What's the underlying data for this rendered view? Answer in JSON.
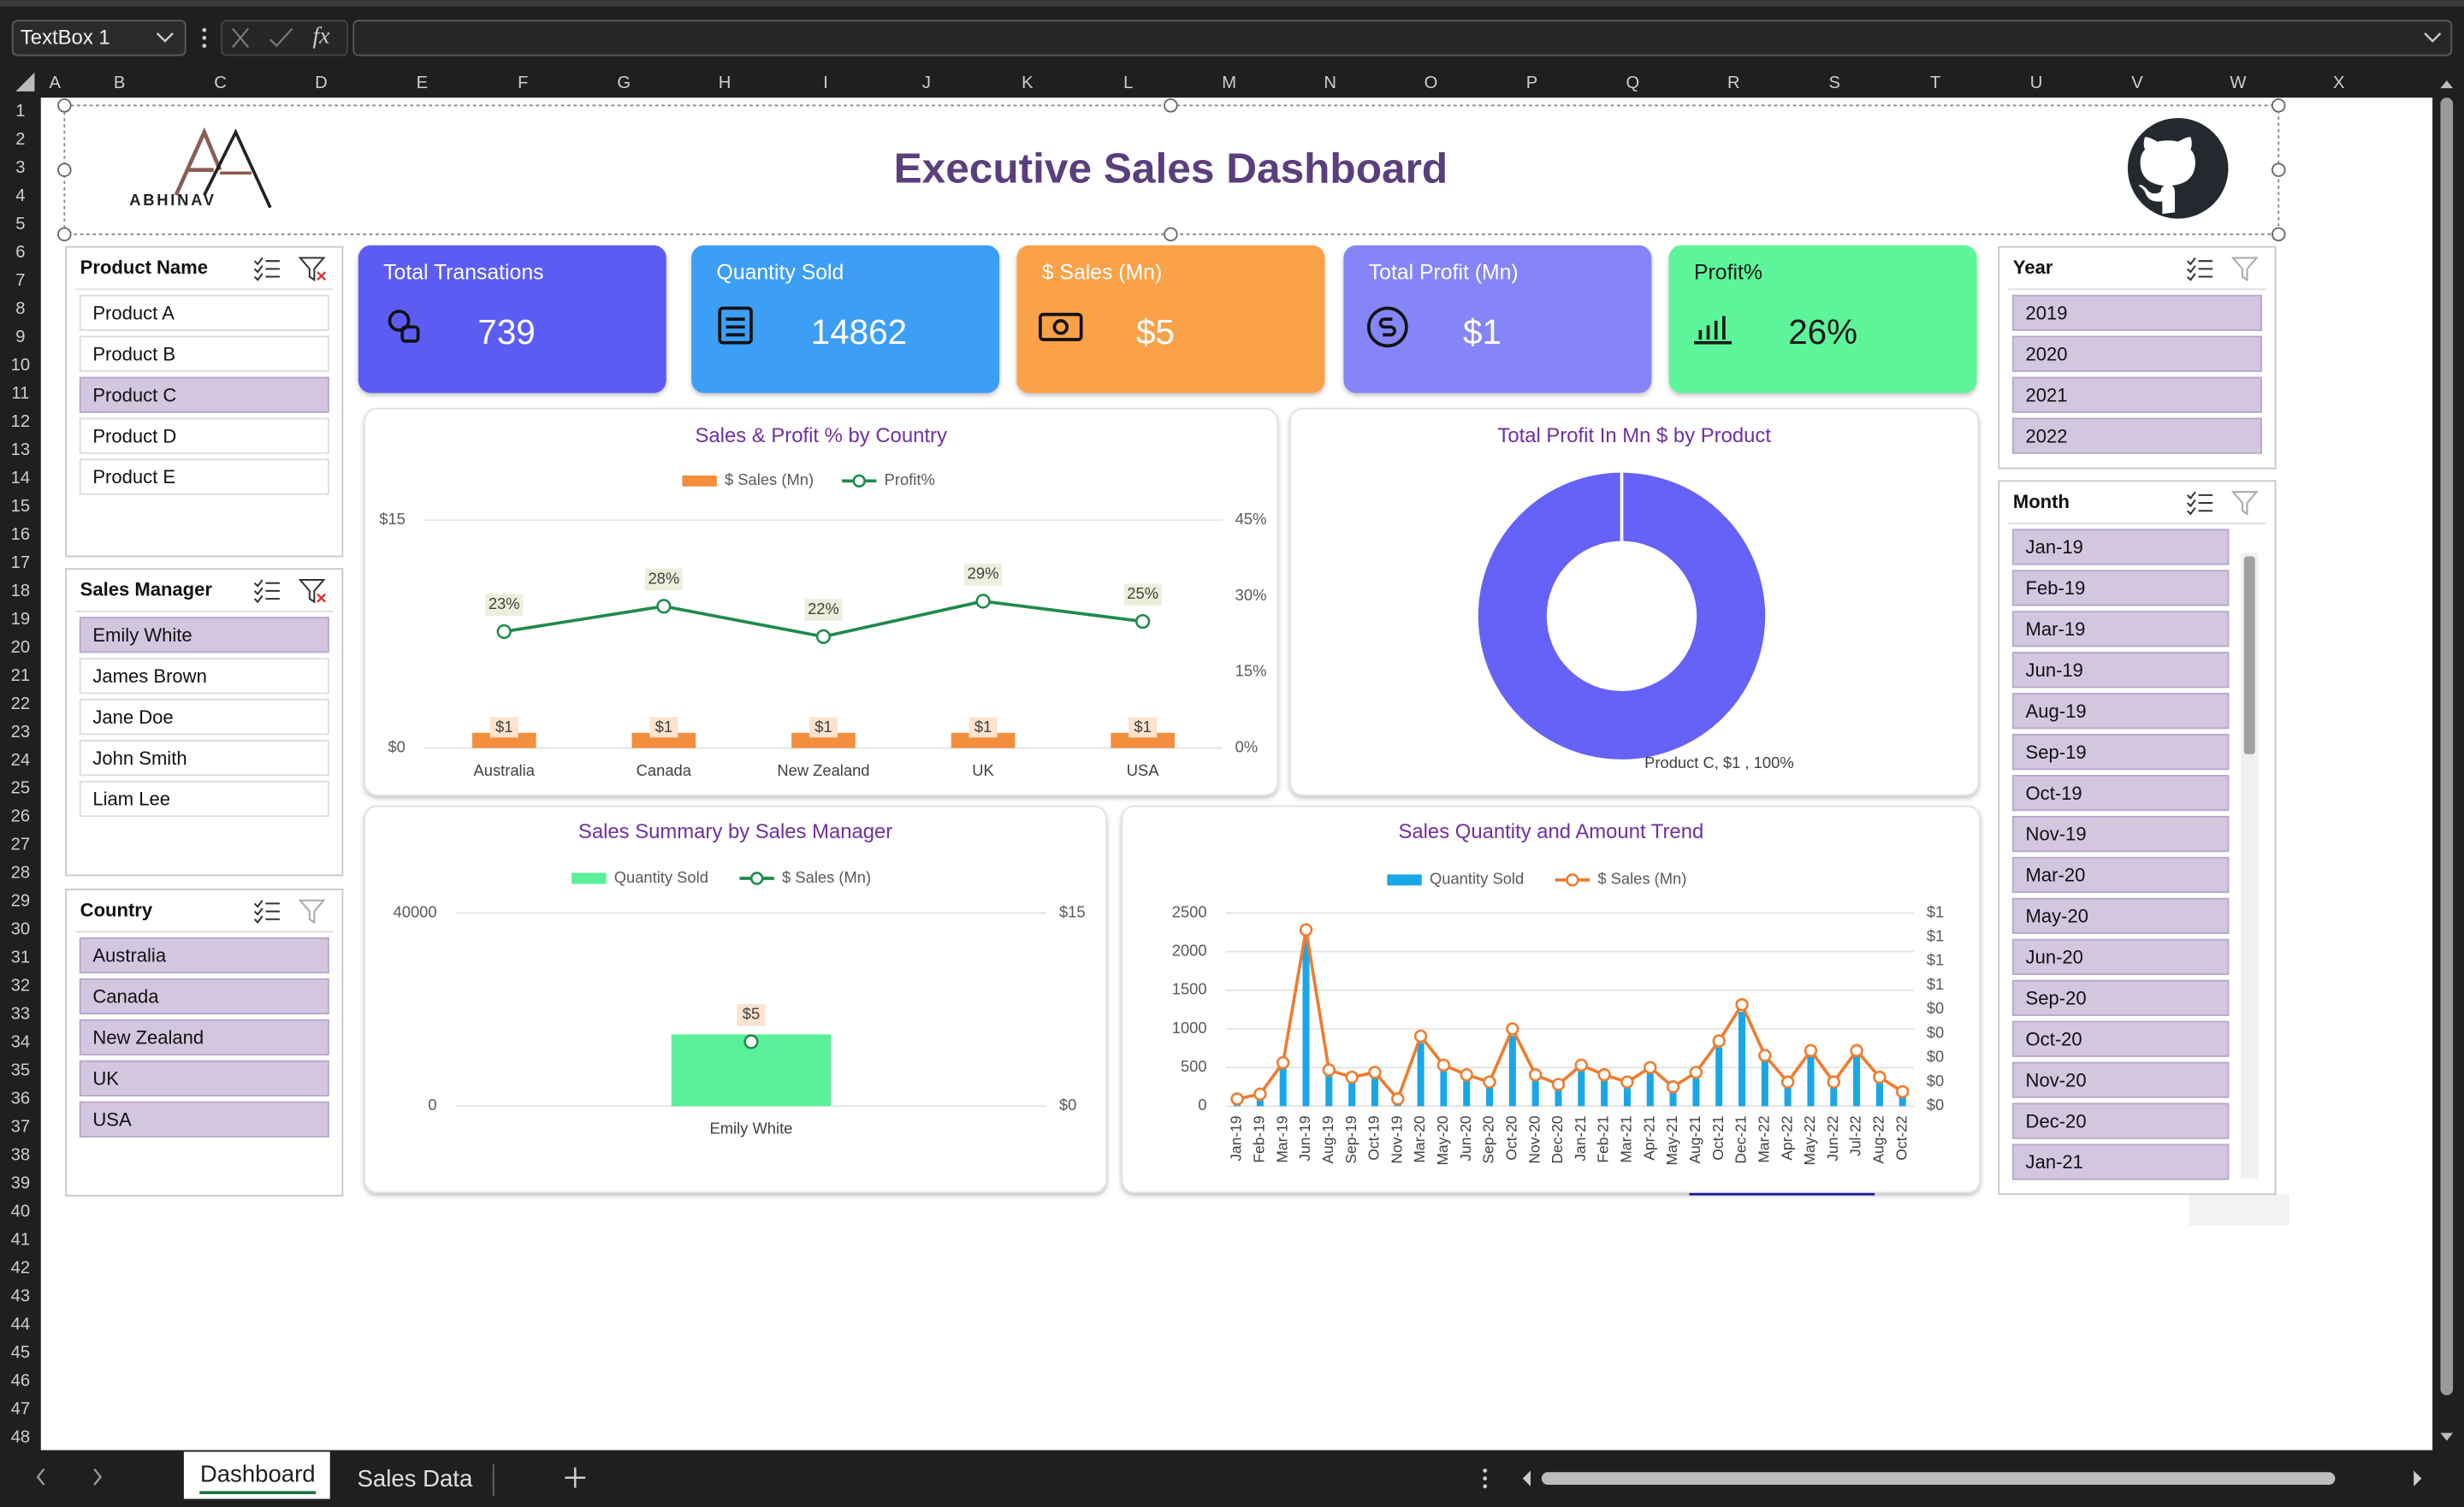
{
  "app": {
    "name_box": "TextBox 1",
    "formula_icon": "fx",
    "columns": [
      "A",
      "B",
      "C",
      "D",
      "E",
      "F",
      "G",
      "H",
      "I",
      "J",
      "K",
      "L",
      "M",
      "N",
      "O",
      "P",
      "Q",
      "R",
      "S",
      "T",
      "U",
      "V",
      "W",
      "X"
    ],
    "rows": [
      1,
      2,
      3,
      4,
      5,
      6,
      7,
      8,
      9,
      10,
      11,
      12,
      13,
      14,
      15,
      16,
      17,
      18,
      19,
      20,
      21,
      22,
      23,
      24,
      25,
      26,
      27,
      28,
      29,
      30,
      31,
      32,
      33,
      34,
      35,
      36,
      37,
      38,
      39,
      40,
      41,
      42,
      43,
      44,
      45,
      46,
      47,
      48
    ],
    "sheet_tabs": [
      "Dashboard",
      "Sales Data"
    ]
  },
  "dashboard": {
    "title": "Executive Sales Dashboard",
    "logo": "ABHINAV",
    "kpis": [
      {
        "label": "Total Transations",
        "value": "739",
        "color": "#5b5bf5"
      },
      {
        "label": "Quantity Sold",
        "value": "14862",
        "color": "#3d9ef5"
      },
      {
        "label": "$ Sales (Mn)",
        "value": "$5",
        "color": "#fba24a"
      },
      {
        "label": "Total Profit (Mn)",
        "value": "$1",
        "color": "#8585f8"
      },
      {
        "label": "Profit%",
        "value": "26%",
        "color": "#5cf59a"
      }
    ],
    "slicers": [
      {
        "title": "Product Name",
        "items": [
          "Product A",
          "Product B",
          "Product C",
          "Product D",
          "Product E"
        ],
        "selected": [
          false,
          false,
          true,
          false,
          false
        ]
      },
      {
        "title": "Sales Manager",
        "items": [
          "Emily White",
          "James Brown",
          "Jane Doe",
          "John Smith",
          "Liam Lee"
        ],
        "selected": [
          true,
          false,
          false,
          false,
          false
        ]
      },
      {
        "title": "Country",
        "items": [
          "Australia",
          "Canada",
          "New Zealand",
          "UK",
          "USA"
        ],
        "selected": [
          true,
          true,
          true,
          true,
          true
        ]
      },
      {
        "title": "Year",
        "items": [
          "2019",
          "2020",
          "2021",
          "2022"
        ],
        "selected": [
          true,
          true,
          true,
          true
        ]
      },
      {
        "title": "Month",
        "items": [
          "Jan-19",
          "Feb-19",
          "Mar-19",
          "Jun-19",
          "Aug-19",
          "Sep-19",
          "Oct-19",
          "Nov-19",
          "Mar-20",
          "May-20",
          "Jun-20",
          "Sep-20",
          "Oct-20",
          "Nov-20",
          "Dec-20",
          "Jan-21"
        ],
        "selected": [
          true,
          true,
          true,
          true,
          true,
          true,
          true,
          true,
          true,
          true,
          true,
          true,
          true,
          true,
          true,
          true
        ]
      }
    ]
  },
  "chart_data": [
    {
      "type": "combo",
      "title": "Sales & Profit % by Country",
      "categories": [
        "Australia",
        "Canada",
        "New Zealand",
        "UK",
        "USA"
      ],
      "series": [
        {
          "name": "$ Sales (Mn)",
          "type": "bar",
          "color": "#f28e3c",
          "values": [
            1,
            1,
            1,
            1,
            1
          ],
          "value_labels": [
            "$1",
            "$1",
            "$1",
            "$1",
            "$1"
          ]
        },
        {
          "name": "Profit%",
          "type": "line",
          "axis": "y2",
          "color": "#1f8a4c",
          "values": [
            23,
            28,
            22,
            29,
            25
          ],
          "value_labels": [
            "23%",
            "28%",
            "22%",
            "29%",
            "25%"
          ]
        }
      ],
      "ylim": [
        0,
        15
      ],
      "yticks": [
        {
          "value": 0,
          "label": "$0"
        },
        {
          "value": 15,
          "label": "$15"
        }
      ],
      "y2lim": [
        0,
        45
      ],
      "y2ticks": [
        {
          "value": 0,
          "label": "0%"
        },
        {
          "value": 15,
          "label": "15%"
        },
        {
          "value": 30,
          "label": "30%"
        },
        {
          "value": 45,
          "label": "45%"
        }
      ],
      "grid": true
    },
    {
      "type": "pie",
      "title": "Total Profit In Mn $ by Product",
      "donut": true,
      "categories": [
        "Product C"
      ],
      "values": [
        1
      ],
      "colors": [
        "#6462f7"
      ],
      "value_labels": [
        "Product C, $1 , 100%"
      ]
    },
    {
      "type": "combo",
      "title": "Sales Summary by Sales Manager",
      "categories": [
        "Emily White"
      ],
      "series": [
        {
          "name": "Quantity Sold",
          "type": "bar",
          "color": "#5af09a",
          "values": [
            14862
          ]
        },
        {
          "name": "$ Sales (Mn)",
          "type": "line",
          "axis": "y2",
          "color": "#1f8a4c",
          "values": [
            5
          ],
          "value_labels": [
            "$5"
          ]
        }
      ],
      "ylim": [
        0,
        40000
      ],
      "yticks": [
        0,
        40000
      ],
      "y2lim": [
        0,
        15
      ],
      "y2ticks": [
        {
          "value": 0,
          "label": "$0"
        },
        {
          "value": 15,
          "label": "$15"
        }
      ],
      "grid": true
    },
    {
      "type": "combo",
      "title": "Sales Quantity and Amount Trend",
      "categories": [
        "Jan-19",
        "Feb-19",
        "Mar-19",
        "Jun-19",
        "Aug-19",
        "Sep-19",
        "Oct-19",
        "Nov-19",
        "Mar-20",
        "May-20",
        "Jun-20",
        "Sep-20",
        "Oct-20",
        "Nov-20",
        "Dec-20",
        "Jan-21",
        "Feb-21",
        "Mar-21",
        "Apr-21",
        "May-21",
        "Aug-21",
        "Oct-21",
        "Dec-21",
        "Mar-22",
        "Apr-22",
        "May-22",
        "Jun-22",
        "Jul-22",
        "Aug-22",
        "Oct-22"
      ],
      "series": [
        {
          "name": "Quantity Sold",
          "type": "bar",
          "color": "#1aa7e8",
          "values": [
            70,
            130,
            520,
            2150,
            430,
            360,
            410,
            90,
            820,
            490,
            380,
            300,
            910,
            380,
            270,
            490,
            380,
            300,
            470,
            220,
            400,
            760,
            1220,
            620,
            280,
            670,
            280,
            650,
            340,
            170
          ]
        },
        {
          "name": "$ Sales (Mn)",
          "type": "line",
          "axis": "y2",
          "color": "#ed7d31",
          "values": [
            0.03,
            0.05,
            0.18,
            0.73,
            0.15,
            0.12,
            0.14,
            0.03,
            0.29,
            0.17,
            0.13,
            0.1,
            0.32,
            0.13,
            0.09,
            0.17,
            0.13,
            0.1,
            0.16,
            0.08,
            0.14,
            0.27,
            0.42,
            0.21,
            0.1,
            0.23,
            0.1,
            0.23,
            0.12,
            0.06
          ]
        }
      ],
      "ylim": [
        0,
        2500
      ],
      "yticks": [
        0,
        500,
        1000,
        1500,
        2000,
        2500
      ],
      "y2lim": [
        0,
        0.8
      ],
      "y2ticks": [
        {
          "value": 0,
          "label": "$0"
        },
        {
          "value": 0.1,
          "label": "$0"
        },
        {
          "value": 0.2,
          "label": "$0"
        },
        {
          "value": 0.3,
          "label": "$0"
        },
        {
          "value": 0.4,
          "label": "$0"
        },
        {
          "value": 0.5,
          "label": "$1"
        },
        {
          "value": 0.6,
          "label": "$1"
        },
        {
          "value": 0.7,
          "label": "$1"
        },
        {
          "value": 0.8,
          "label": "$1"
        }
      ],
      "grid": true,
      "rotate_labels": true
    }
  ]
}
